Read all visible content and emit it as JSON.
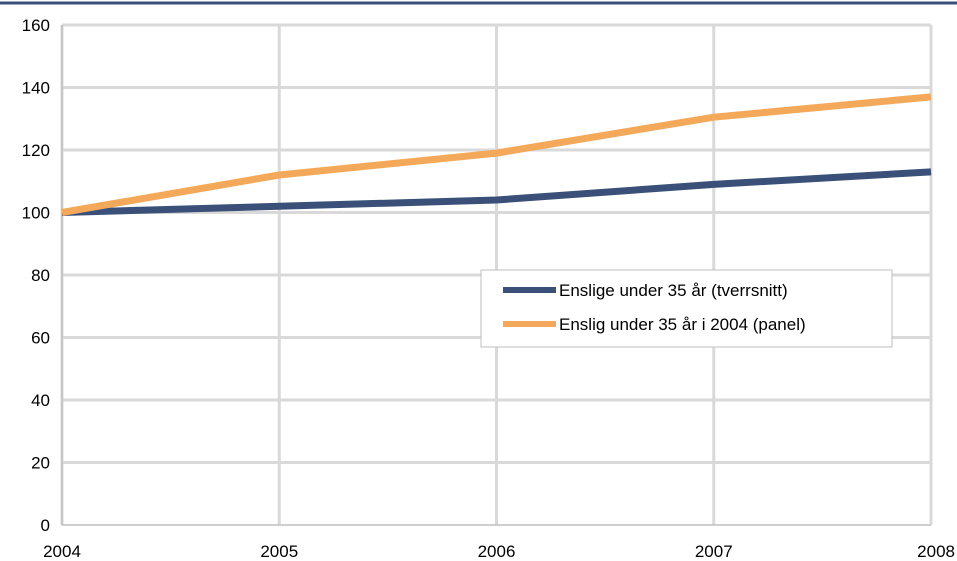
{
  "colors": {
    "top_rule": "#3a4e7a",
    "grid": "#d9d9d9",
    "axis": "#bfbfbf",
    "legend_border": "#bfbfbf"
  },
  "chart_data": {
    "type": "line",
    "x": [
      "2004",
      "2005",
      "2006",
      "2007",
      "2008"
    ],
    "ylim": [
      0,
      160
    ],
    "yticks": [
      0,
      20,
      40,
      60,
      80,
      100,
      120,
      140,
      160
    ],
    "grid": true,
    "legend_position": "center-right",
    "series": [
      {
        "name": "Enslige under 35 år (tverrsnitt)",
        "color": "#3b5078",
        "values": [
          100,
          102,
          104,
          109,
          113
        ]
      },
      {
        "name": "Enslig under 35 år i 2004 (panel)",
        "color": "#f4a95a",
        "values": [
          100,
          112,
          119,
          130.5,
          137
        ]
      }
    ]
  }
}
